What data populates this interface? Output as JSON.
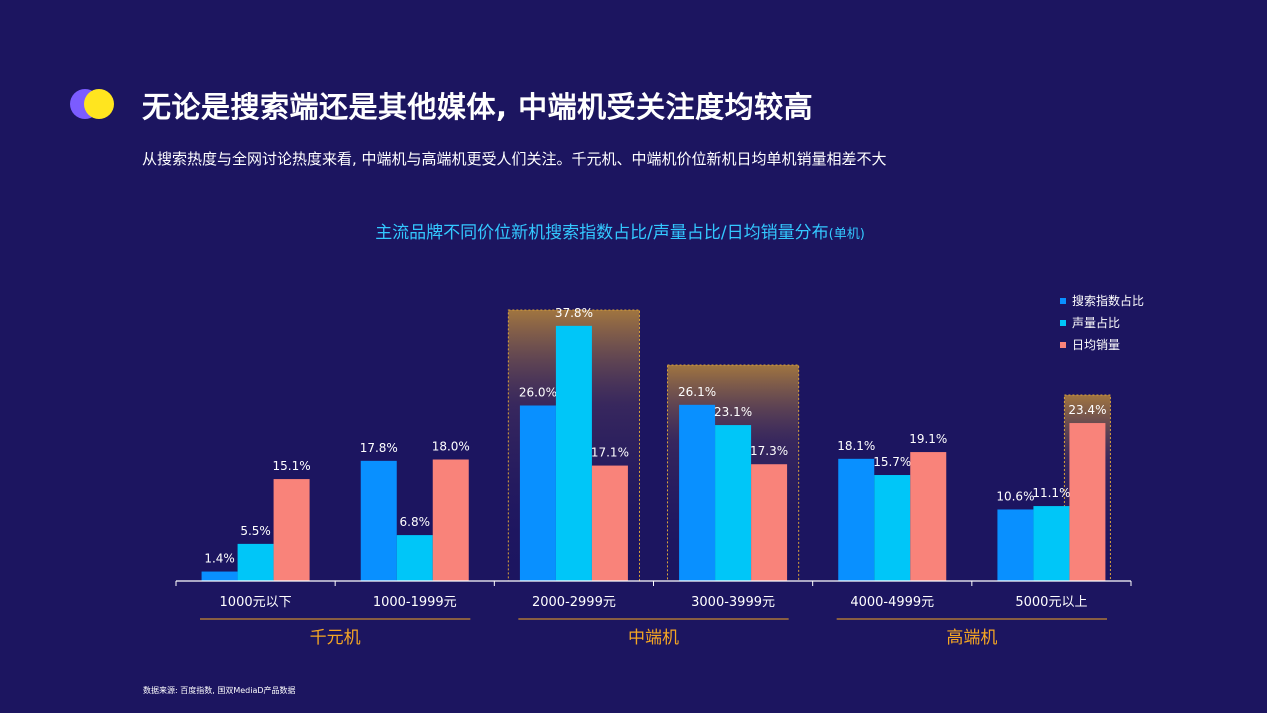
{
  "header": {
    "title": "无论是搜索端还是其他媒体, 中端机受关注度均较高",
    "subtitle": "从搜索热度与全网讨论热度来看, 中端机与高端机更受人们关注。千元机、中端机价位新机日均单机销量相差不大"
  },
  "chart_title": {
    "main": "主流品牌不同价位新机搜索指数占比/声量占比/日均销量分布",
    "suffix": "(单机)"
  },
  "source": "数据来源: 百度指数, 国双MediaD产品数据",
  "colors": {
    "background": "#1c1560",
    "search": "#0990ff",
    "voice": "#00c6f8",
    "sales": "#f9837a",
    "group_label": "#f5a623",
    "highlight_border": "#d9a23a"
  },
  "chart_data": {
    "type": "bar",
    "title": "主流品牌不同价位新机搜索指数占比/声量占比/日均销量分布(单机)",
    "categories": [
      "1000元以下",
      "1000-1999元",
      "2000-2999元",
      "3000-3999元",
      "4000-4999元",
      "5000元以上"
    ],
    "series": [
      {
        "name": "搜索指数占比",
        "values": [
          1.4,
          17.8,
          26.0,
          26.1,
          18.1,
          10.6
        ],
        "labels": [
          "1.4%",
          "17.8%",
          "26.0%",
          "26.1%",
          "18.1%",
          "10.6%"
        ],
        "color": "#0990ff"
      },
      {
        "name": "声量占比",
        "values": [
          5.5,
          6.8,
          37.8,
          23.1,
          15.7,
          11.1
        ],
        "labels": [
          "5.5%",
          "6.8%",
          "37.8%",
          "23.1%",
          "15.7%",
          "11.1%"
        ],
        "color": "#00c6f8"
      },
      {
        "name": "日均销量",
        "values": [
          15.1,
          18.0,
          17.1,
          17.3,
          19.1,
          23.4
        ],
        "labels": [
          "15.1%",
          "18.0%",
          "17.1%",
          "17.3%",
          "19.1%",
          "23.4%"
        ],
        "color": "#f9837a"
      }
    ],
    "groups": [
      {
        "label": "千元机",
        "categories": [
          0,
          1
        ]
      },
      {
        "label": "中端机",
        "categories": [
          2,
          3
        ]
      },
      {
        "label": "高端机",
        "categories": [
          4,
          5
        ]
      }
    ],
    "highlights": [
      {
        "category": 2
      },
      {
        "category": 3
      },
      {
        "category": 5,
        "series": 2
      }
    ],
    "legend_position": "top-right",
    "grid": false
  }
}
